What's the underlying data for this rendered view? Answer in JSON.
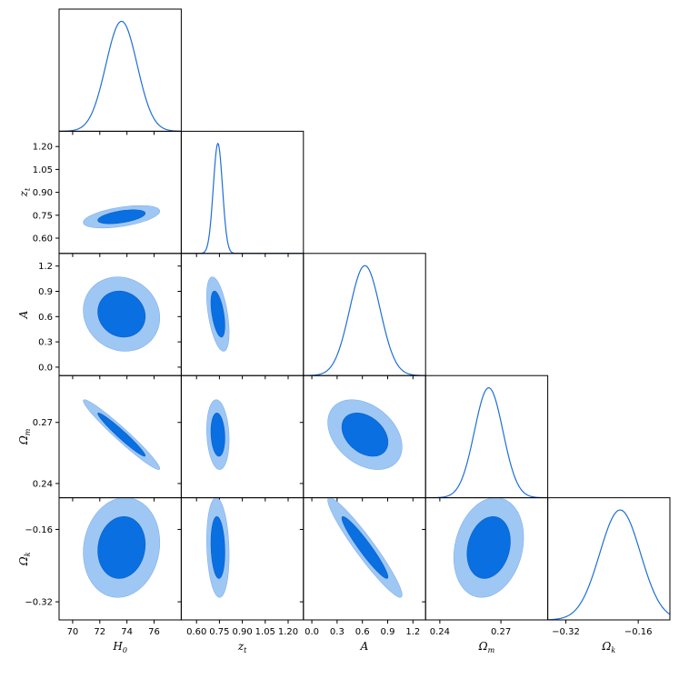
{
  "chart_data": {
    "type": "triangle_corner_plot",
    "parameters": [
      {
        "id": "H0",
        "symbol": "H",
        "subscript": "0",
        "range": [
          69,
          78
        ],
        "ticks": [
          70,
          72,
          74,
          76
        ],
        "tick_labels": [
          "70",
          "72",
          "74",
          "76"
        ],
        "mean": 73.6,
        "sd": 1.15
      },
      {
        "id": "zt",
        "symbol": "z",
        "subscript": "t",
        "range": [
          0.5,
          1.3
        ],
        "ticks": [
          0.6,
          0.75,
          0.9,
          1.05,
          1.2
        ],
        "tick_labels": [
          "0.60",
          "0.75",
          "0.90",
          "1.05",
          "1.20"
        ],
        "mean": 0.74,
        "sd": 0.03
      },
      {
        "id": "A",
        "symbol": "A",
        "subscript": "",
        "range": [
          -0.1,
          1.35
        ],
        "ticks": [
          0,
          0.3,
          0.6,
          0.9,
          1.2
        ],
        "tick_labels": [
          "0.0",
          "0.3",
          "0.6",
          "0.9",
          "1.2"
        ],
        "mean": 0.63,
        "sd": 0.18
      },
      {
        "id": "Om",
        "symbol": "Ω",
        "subscript": "m",
        "range": [
          0.233,
          0.293
        ],
        "ticks": [
          0.24,
          0.27
        ],
        "tick_labels": [
          "0.24",
          "0.27"
        ],
        "mean": 0.264,
        "sd": 0.007
      },
      {
        "id": "Ok",
        "symbol": "Ω",
        "subscript": "k",
        "range": [
          -0.36,
          -0.09
        ],
        "ticks": [
          -0.32,
          -0.16
        ],
        "tick_labels": [
          "−0.32",
          "−0.16"
        ],
        "mean": -0.2,
        "sd": 0.045
      }
    ],
    "correlations": {
      "zt|H0": 0.5,
      "A|H0": -0.1,
      "Om|H0": -0.97,
      "Ok|H0": 0.1,
      "A|zt": -0.5,
      "Om|zt": -0.15,
      "Ok|zt": -0.15,
      "Om|A": -0.35,
      "Ok|A": -0.95,
      "Ok|Om": 0.2
    },
    "contour_levels": [
      "68%",
      "95%"
    ],
    "colors": {
      "line": "#1f6fd6",
      "contour_95": "#9fc7f4",
      "contour_68": "#0a6fe0"
    }
  }
}
